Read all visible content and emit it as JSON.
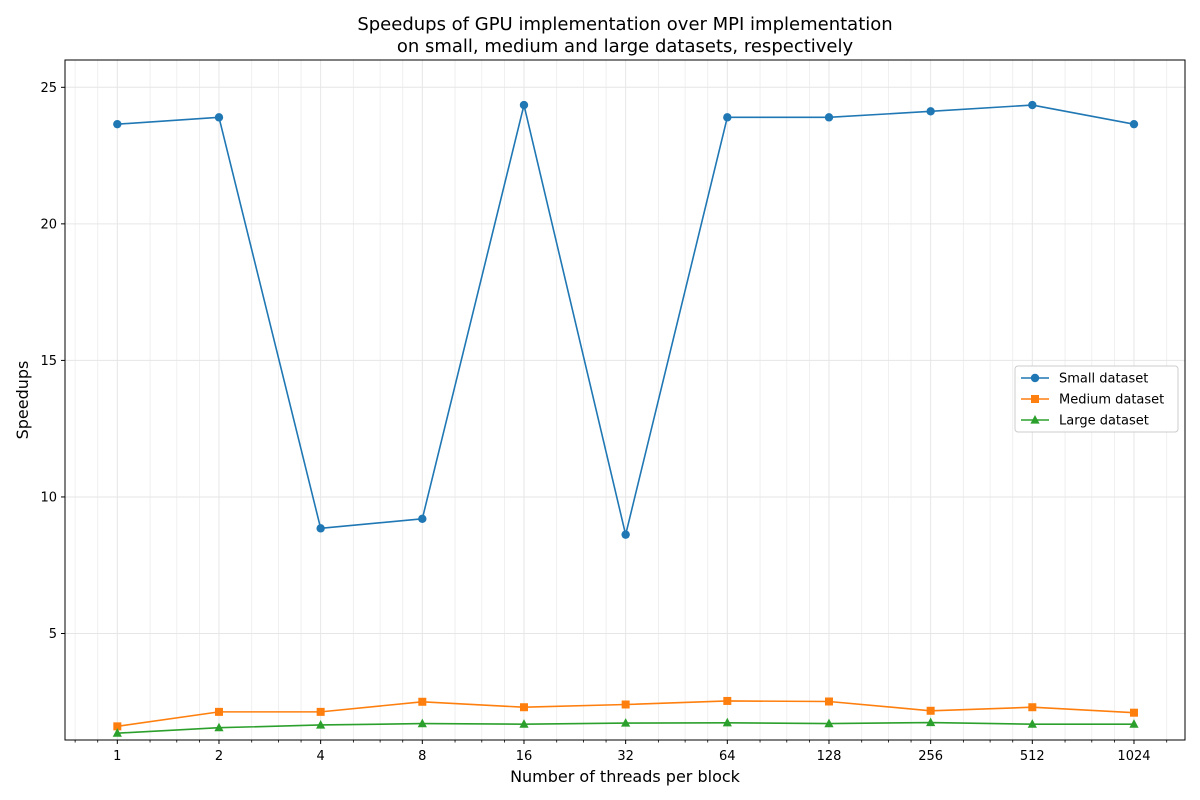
{
  "chart_data": {
    "type": "line",
    "title_line1": "Speedups of GPU implementation over MPI implementation",
    "title_line2": "on small, medium and large datasets, respectively",
    "xlabel": "Number of threads per block",
    "ylabel": "Speedups",
    "x_scale": "log2",
    "x": [
      1,
      2,
      4,
      8,
      16,
      32,
      64,
      128,
      256,
      512,
      1024
    ],
    "x_tick_labels": [
      "1",
      "2",
      "4",
      "8",
      "16",
      "32",
      "64",
      "128",
      "256",
      "512",
      "1024"
    ],
    "y_ticks": [
      5,
      10,
      15,
      20,
      25
    ],
    "xlim": [
      0.7,
      1450
    ],
    "ylim": [
      1.1,
      26.0
    ],
    "grid": true,
    "legend_position": "center-right",
    "series": [
      {
        "name": "Small dataset",
        "color": "#1f77b4",
        "marker": "circle",
        "values": [
          23.65,
          23.9,
          8.85,
          9.2,
          24.35,
          8.62,
          23.9,
          23.9,
          24.12,
          24.35,
          23.65
        ]
      },
      {
        "name": "Medium dataset",
        "color": "#ff7f0e",
        "marker": "square",
        "values": [
          1.6,
          2.13,
          2.13,
          2.5,
          2.3,
          2.4,
          2.53,
          2.51,
          2.17,
          2.3,
          2.1
        ]
      },
      {
        "name": "Large dataset",
        "color": "#2ca02c",
        "marker": "triangle",
        "values": [
          1.35,
          1.55,
          1.65,
          1.7,
          1.68,
          1.72,
          1.73,
          1.7,
          1.74,
          1.68,
          1.68
        ]
      }
    ]
  }
}
